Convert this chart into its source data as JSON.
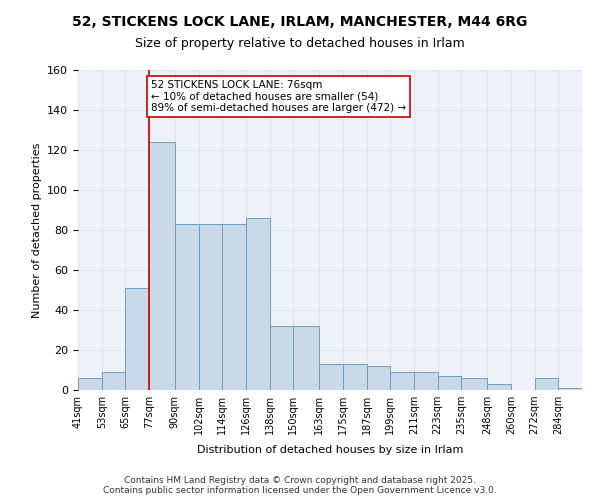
{
  "title_line1": "52, STICKENS LOCK LANE, IRLAM, MANCHESTER, M44 6RG",
  "title_line2": "Size of property relative to detached houses in Irlam",
  "xlabel": "Distribution of detached houses by size in Irlam",
  "ylabel": "Number of detached properties",
  "bin_labels": [
    "41sqm",
    "53sqm",
    "65sqm",
    "77sqm",
    "90sqm",
    "102sqm",
    "114sqm",
    "126sqm",
    "138sqm",
    "150sqm",
    "163sqm",
    "175sqm",
    "187sqm",
    "199sqm",
    "211sqm",
    "223sqm",
    "235sqm",
    "248sqm",
    "260sqm",
    "272sqm",
    "284sqm"
  ],
  "bar_values": [
    6,
    9,
    51,
    124,
    83,
    83,
    83,
    86,
    32,
    32,
    13,
    13,
    12,
    9,
    9,
    7,
    6,
    3,
    0,
    6,
    1
  ],
  "bar_color": "#c9d9e8",
  "bar_edge_color": "#6a9ec4",
  "grid_color": "#dde6f0",
  "background_color": "#eef2f8",
  "vline_x": 77,
  "vline_color": "#cc0000",
  "annotation_text": "52 STICKENS LOCK LANE: 76sqm\n← 10% of detached houses are smaller (54)\n89% of semi-detached houses are larger (472) →",
  "annotation_box_color": "#ffffff",
  "annotation_box_edge": "#cc0000",
  "ylim": [
    0,
    160
  ],
  "yticks": [
    0,
    20,
    40,
    60,
    80,
    100,
    120,
    140,
    160
  ],
  "footer_text": "Contains HM Land Registry data © Crown copyright and database right 2025.\nContains public sector information licensed under the Open Government Licence v3.0.",
  "bin_edges": [
    41,
    53,
    65,
    77,
    90,
    102,
    114,
    126,
    138,
    150,
    163,
    175,
    187,
    199,
    211,
    223,
    235,
    248,
    260,
    272,
    284,
    296
  ]
}
